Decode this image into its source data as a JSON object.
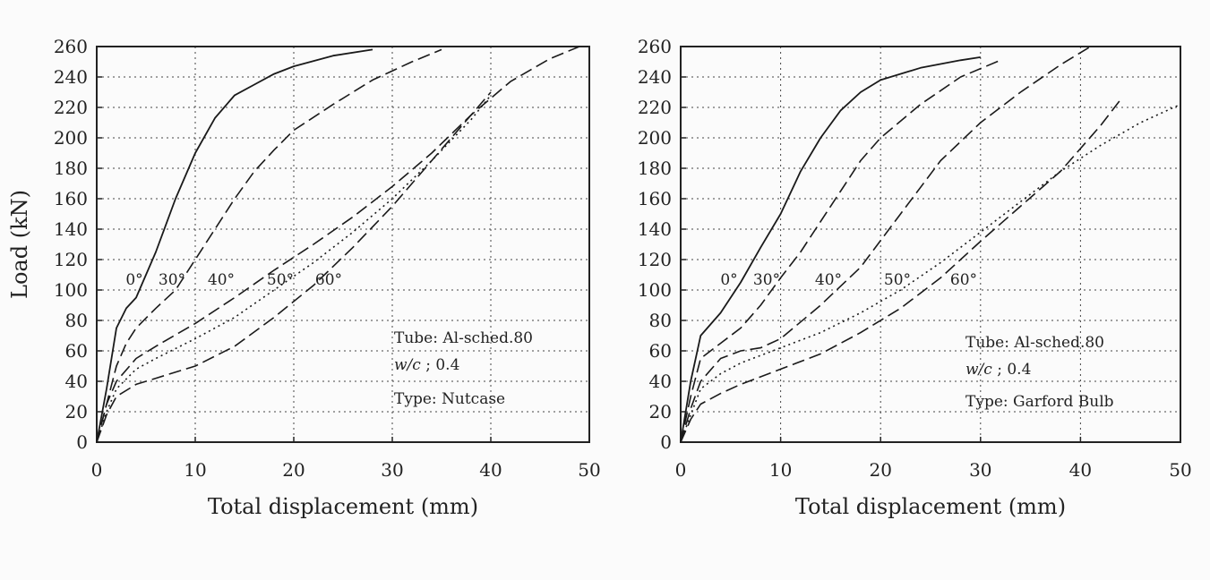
{
  "chart_data": [
    {
      "type": "line",
      "xlabel": "Total displacement (mm)",
      "ylabel": "Load (kN)",
      "xlim": [
        0,
        50
      ],
      "ylim": [
        0,
        260
      ],
      "xticks": [
        "0",
        "10",
        "20",
        "30",
        "40",
        "50"
      ],
      "yticks": [
        "0",
        "20",
        "40",
        "60",
        "80",
        "100",
        "120",
        "140",
        "160",
        "180",
        "200",
        "220",
        "240",
        "260"
      ],
      "grid": true,
      "annotation": {
        "tube": "Tube: Al-sched.80",
        "wc_label": "w/c",
        "wc_value": " ; 0.4",
        "type": "Type: Nutcase"
      },
      "angle_labels": [
        "0°",
        "30°",
        "40°",
        "50°",
        "60°"
      ],
      "series": [
        {
          "name": "0°",
          "style": "solid",
          "x": [
            0,
            1,
            2,
            3,
            4,
            6,
            8,
            10,
            12,
            14,
            16,
            18,
            20,
            24,
            28
          ],
          "y": [
            0,
            35,
            75,
            88,
            95,
            125,
            160,
            190,
            213,
            228,
            235,
            242,
            247,
            254,
            258
          ]
        },
        {
          "name": "30°",
          "style": "dashed",
          "x": [
            0,
            1,
            2,
            3,
            4,
            6,
            8,
            10,
            12,
            14,
            16,
            18,
            20,
            24,
            28,
            32,
            35
          ],
          "y": [
            0,
            25,
            50,
            65,
            75,
            88,
            100,
            120,
            140,
            160,
            178,
            192,
            205,
            222,
            238,
            250,
            258
          ]
        },
        {
          "name": "40°",
          "style": "dashed",
          "x": [
            0,
            1,
            2,
            4,
            6,
            10,
            14,
            18,
            22,
            26,
            30,
            34,
            38,
            42,
            46,
            49
          ],
          "y": [
            0,
            25,
            40,
            55,
            63,
            78,
            95,
            113,
            130,
            148,
            168,
            190,
            215,
            237,
            252,
            260
          ]
        },
        {
          "name": "50°",
          "style": "dotted",
          "x": [
            0,
            1,
            2,
            4,
            6,
            10,
            14,
            18,
            22,
            26,
            30,
            34,
            38,
            40
          ],
          "y": [
            0,
            20,
            35,
            48,
            55,
            68,
            82,
            100,
            118,
            138,
            160,
            185,
            212,
            228
          ]
        },
        {
          "name": "60°",
          "style": "dashed",
          "x": [
            0,
            1,
            2,
            4,
            6,
            10,
            14,
            18,
            22,
            26,
            30,
            34,
            38,
            40
          ],
          "y": [
            0,
            18,
            30,
            38,
            42,
            50,
            63,
            82,
            103,
            128,
            155,
            185,
            215,
            230
          ]
        }
      ]
    },
    {
      "type": "line",
      "xlabel": "Total displacement (mm)",
      "ylabel": "",
      "xlim": [
        0,
        50
      ],
      "ylim": [
        0,
        260
      ],
      "xticks": [
        "0",
        "10",
        "20",
        "30",
        "40",
        "50"
      ],
      "yticks": [
        "0",
        "20",
        "40",
        "60",
        "80",
        "100",
        "120",
        "140",
        "160",
        "180",
        "200",
        "220",
        "240",
        "260"
      ],
      "grid": true,
      "annotation": {
        "tube": "Tube: Al-sched.80",
        "wc_label": "w/c",
        "wc_value": " ; 0.4",
        "type": "Type: Garford Bulb"
      },
      "angle_labels": [
        "0°",
        "30°",
        "40°",
        "50°",
        "60°"
      ],
      "series": [
        {
          "name": "0°",
          "style": "solid",
          "x": [
            0,
            1,
            2,
            4,
            6,
            8,
            10,
            12,
            14,
            16,
            18,
            20,
            24,
            28,
            30
          ],
          "y": [
            0,
            40,
            70,
            85,
            105,
            128,
            150,
            178,
            200,
            218,
            230,
            238,
            246,
            251,
            253
          ]
        },
        {
          "name": "30°",
          "style": "dashed",
          "x": [
            0,
            1,
            2,
            4,
            6,
            8,
            10,
            12,
            14,
            16,
            18,
            20,
            24,
            28,
            32
          ],
          "y": [
            0,
            30,
            55,
            65,
            75,
            90,
            108,
            125,
            145,
            165,
            185,
            200,
            222,
            240,
            251
          ]
        },
        {
          "name": "40°",
          "style": "dashed",
          "x": [
            0,
            1,
            2,
            4,
            6,
            8,
            10,
            14,
            18,
            22,
            26,
            30,
            34,
            38,
            41
          ],
          "y": [
            0,
            22,
            40,
            55,
            60,
            62,
            68,
            90,
            115,
            150,
            185,
            210,
            230,
            248,
            260
          ]
        },
        {
          "name": "50°",
          "style": "dashed",
          "x": [
            0,
            1,
            2,
            4,
            6,
            10,
            14,
            18,
            22,
            26,
            30,
            34,
            38,
            42,
            44
          ],
          "y": [
            0,
            15,
            25,
            32,
            38,
            48,
            58,
            72,
            88,
            108,
            132,
            155,
            178,
            208,
            225
          ]
        },
        {
          "name": "60°",
          "style": "dotted",
          "x": [
            0,
            1,
            2,
            4,
            6,
            10,
            14,
            18,
            22,
            26,
            30,
            34,
            38,
            42,
            46,
            50
          ],
          "y": [
            0,
            18,
            35,
            45,
            52,
            62,
            72,
            85,
            100,
            118,
            138,
            158,
            178,
            195,
            210,
            222
          ]
        }
      ]
    }
  ]
}
